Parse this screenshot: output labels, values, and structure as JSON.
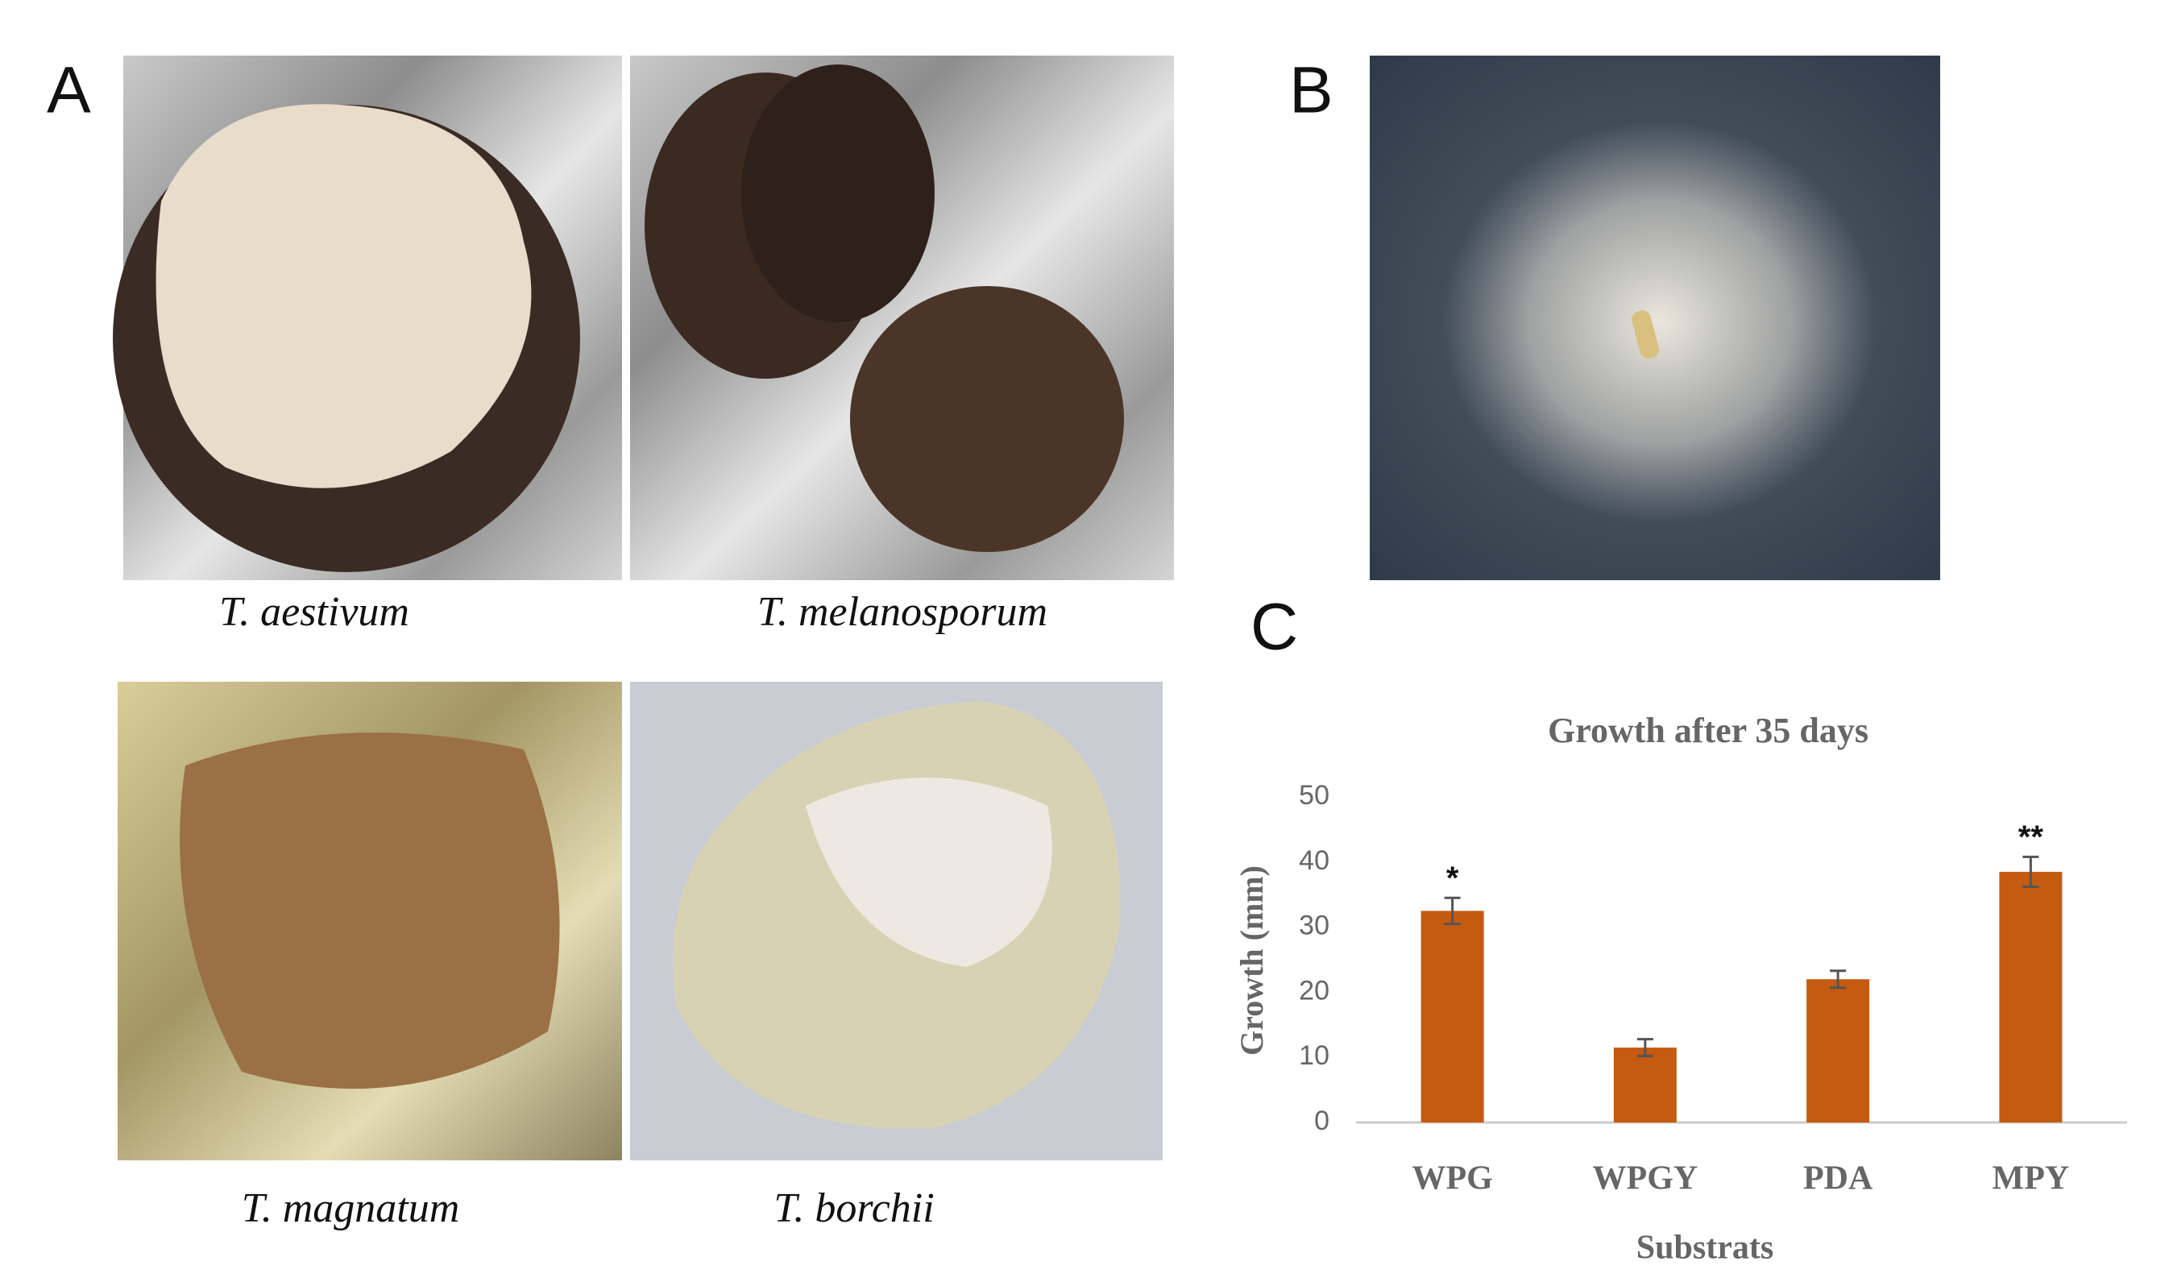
{
  "panel_labels": [
    "A",
    "B",
    "C"
  ],
  "photos": [
    {
      "caption": "T. aestivum"
    },
    {
      "caption": "T. melanosporum"
    },
    {
      "caption": "T. magnatum"
    },
    {
      "caption": "T. borchii"
    }
  ],
  "chart_data": {
    "type": "bar",
    "title": "Growth after 35 days",
    "ylabel": "Growth  (mm)",
    "xlabel": "Substrats",
    "categories": [
      "WPG",
      "WPGY",
      "PDA",
      "MPY"
    ],
    "values": [
      32.5,
      11.5,
      22,
      38.5
    ],
    "errors": [
      2,
      1.3,
      1.3,
      2.3
    ],
    "annotations": [
      "*",
      null,
      null,
      "**"
    ],
    "color": "#c55a11",
    "ylim": [
      0,
      50
    ],
    "yticks": [
      0,
      10,
      20,
      30,
      40,
      50
    ],
    "grid": false
  }
}
